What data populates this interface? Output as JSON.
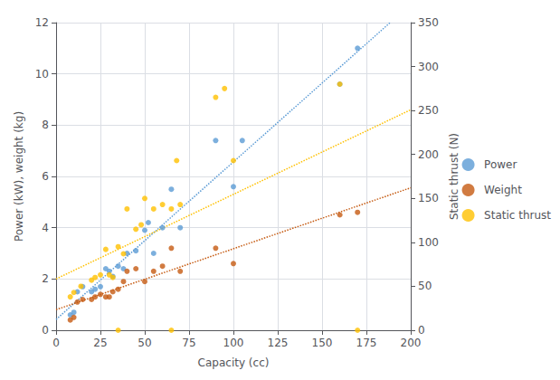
{
  "chart_data": {
    "type": "scatter",
    "xlabel": "Capacity (cc)",
    "ylabel": "Power (kW), weight (kg)",
    "y2label": "Static thrust (N)",
    "xlim": [
      0,
      200
    ],
    "xticks": [
      0,
      25,
      50,
      75,
      100,
      125,
      150,
      175,
      200
    ],
    "ylim": [
      0,
      12
    ],
    "yticks": [
      0,
      2,
      4,
      6,
      8,
      10,
      12
    ],
    "y2lim": [
      0,
      350
    ],
    "y2ticks": [
      0,
      50,
      100,
      150,
      200,
      250,
      300,
      350
    ],
    "grid": true,
    "legend": "right",
    "series": [
      {
        "name": "Power",
        "type": "scatter",
        "marker": "circle",
        "color": "#5B9BD5",
        "x": [
          8,
          10,
          12,
          15,
          20,
          22,
          25,
          28,
          30,
          32,
          35,
          38,
          40,
          45,
          50,
          52,
          55,
          60,
          65,
          70,
          90,
          100,
          105,
          160,
          170
        ],
        "values": [
          0.6,
          0.7,
          1.5,
          1.7,
          1.5,
          1.6,
          1.7,
          2.4,
          2.3,
          2.1,
          2.5,
          2.4,
          3.0,
          3.1,
          3.9,
          4.2,
          3.0,
          4.0,
          5.5,
          4.0,
          7.4,
          5.6,
          7.4,
          9.6,
          11.0
        ]
      },
      {
        "name": "Weight",
        "type": "scatter",
        "marker": "circle",
        "color": "#C55A11",
        "x": [
          8,
          10,
          12,
          15,
          20,
          22,
          25,
          28,
          30,
          32,
          35,
          38,
          40,
          45,
          50,
          55,
          60,
          65,
          70,
          90,
          100,
          160,
          170
        ],
        "values": [
          0.4,
          0.5,
          1.1,
          1.2,
          1.2,
          1.3,
          1.4,
          1.3,
          1.3,
          1.5,
          1.6,
          1.9,
          2.3,
          2.4,
          1.9,
          2.3,
          2.5,
          3.2,
          2.3,
          3.2,
          2.6,
          4.5,
          4.6
        ]
      },
      {
        "name": "Static thrust",
        "type": "scatter",
        "marker": "circle",
        "color": "#FFC000",
        "axis": "y2",
        "x": [
          8,
          10,
          14,
          20,
          22,
          25,
          28,
          30,
          32,
          35,
          38,
          40,
          45,
          48,
          50,
          55,
          60,
          65,
          68,
          70,
          90,
          95,
          100,
          160,
          170,
          35,
          65
        ],
        "values": [
          38,
          43,
          50,
          57,
          60,
          63,
          92,
          63,
          60,
          95,
          87,
          138,
          115,
          120,
          150,
          138,
          143,
          138,
          193,
          143,
          265,
          275,
          193,
          280,
          0,
          0,
          0
        ]
      },
      {
        "type": "line",
        "line_style": "dotted",
        "color": "#5B9BD5",
        "x": [
          0,
          188.38
        ],
        "values": [
          0.4208,
          12
        ]
      },
      {
        "type": "line",
        "line_style": "dotted",
        "color": "#C55A11",
        "x": [
          0,
          200
        ],
        "values": [
          0.8017,
          5.5578
        ]
      },
      {
        "type": "line",
        "line_style": "dotted",
        "color": "#FFC000",
        "axis": "y2",
        "x": [
          0,
          200
        ],
        "values": [
          58.401,
          250.846
        ]
      }
    ]
  }
}
